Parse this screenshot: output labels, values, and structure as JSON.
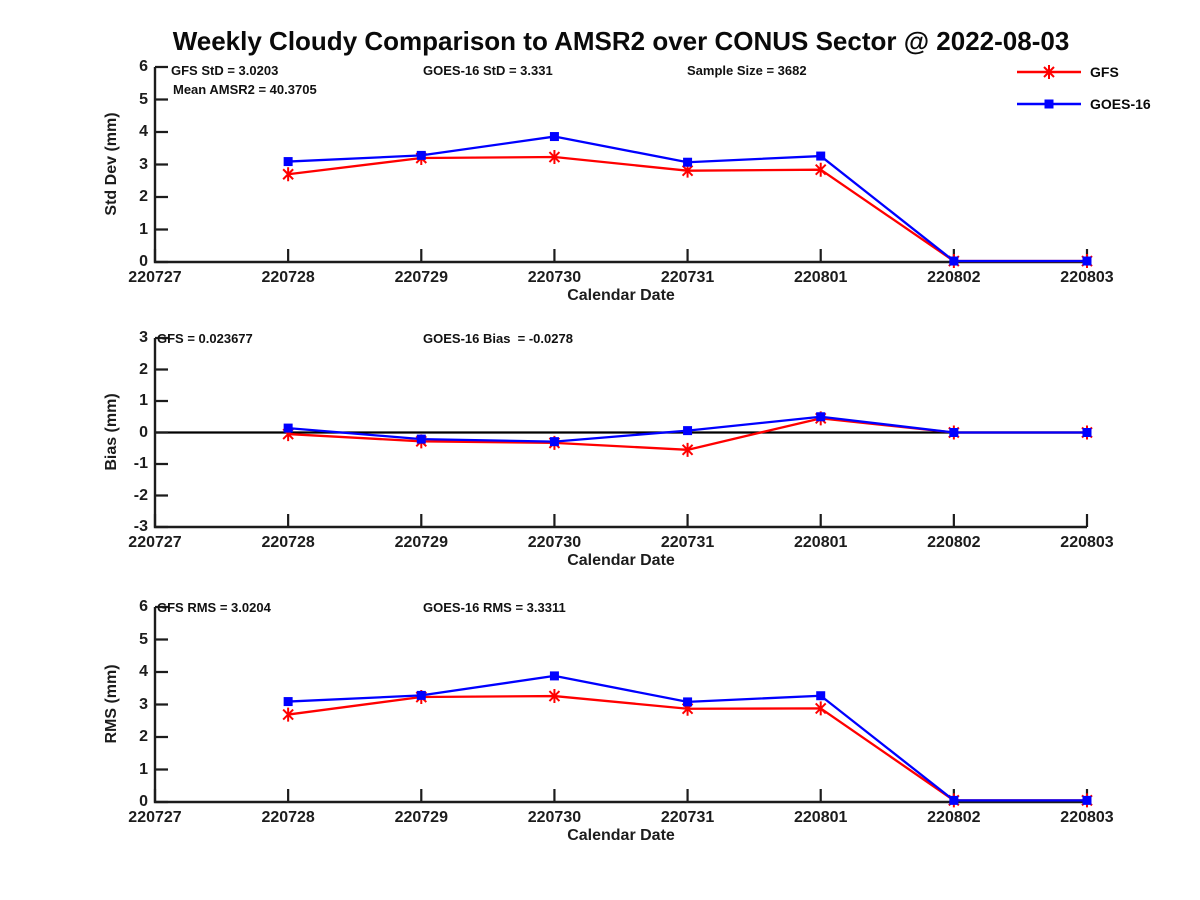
{
  "title": "Weekly Cloudy Comparison to AMSR2 over CONUS Sector @ 2022-08-03",
  "colors": {
    "gfs_red": "#ff0000",
    "goes_blue": "#0000ff",
    "axis": "#1c1c1c",
    "zero_line": "#000000",
    "background": "#ffffff"
  },
  "legend": {
    "entries": [
      {
        "label": "GFS",
        "color": "#ff0000",
        "marker": "asterisk"
      },
      {
        "label": "GOES-16",
        "color": "#0000ff",
        "marker": "square"
      }
    ]
  },
  "chart_data": [
    {
      "type": "line",
      "name": "std-dev-subplot",
      "xlabel": "Calendar Date",
      "ylabel": "Std Dev (mm)",
      "ylim": [
        0,
        6
      ],
      "yticks": [
        0,
        1,
        2,
        3,
        4,
        5,
        6
      ],
      "x_axis_categories": [
        "220727",
        "220728",
        "220729",
        "220730",
        "220731",
        "220801",
        "220802",
        "220803"
      ],
      "grid": false,
      "zero_line": false,
      "annotations": [
        "GFS StD = 3.0203",
        "GOES-16 StD = 3.331",
        "Sample Size = 3682",
        "Mean AMSR2 = 40.3705"
      ],
      "series": [
        {
          "name": "GFS",
          "color": "#ff0000",
          "marker": "asterisk",
          "x": [
            "220728",
            "220729",
            "220730",
            "220731",
            "220801",
            "220802",
            "220803"
          ],
          "values": [
            2.7,
            3.2,
            3.23,
            2.81,
            2.84,
            0.03,
            0.03
          ]
        },
        {
          "name": "GOES-16",
          "color": "#0000ff",
          "marker": "square",
          "x": [
            "220728",
            "220729",
            "220730",
            "220731",
            "220801",
            "220802",
            "220803"
          ],
          "values": [
            3.09,
            3.28,
            3.86,
            3.07,
            3.26,
            0.03,
            0.03
          ]
        }
      ]
    },
    {
      "type": "line",
      "name": "bias-subplot",
      "xlabel": "Calendar Date",
      "ylabel": "Bias (mm)",
      "ylim": [
        -3,
        3
      ],
      "yticks": [
        3,
        2,
        1,
        0,
        -1,
        -2,
        -3
      ],
      "x_axis_categories": [
        "220727",
        "220728",
        "220729",
        "220730",
        "220731",
        "220801",
        "220802",
        "220803"
      ],
      "grid": false,
      "zero_line": true,
      "annotations": [
        "GFS = 0.023677",
        "GOES-16 Bias  = -0.0278"
      ],
      "series": [
        {
          "name": "GFS",
          "color": "#ff0000",
          "marker": "asterisk",
          "x": [
            "220728",
            "220729",
            "220730",
            "220731",
            "220801",
            "220802",
            "220803"
          ],
          "values": [
            -0.05,
            -0.28,
            -0.33,
            -0.55,
            0.45,
            0.0,
            0.0
          ]
        },
        {
          "name": "GOES-16",
          "color": "#0000ff",
          "marker": "square",
          "x": [
            "220728",
            "220729",
            "220730",
            "220731",
            "220801",
            "220802",
            "220803"
          ],
          "values": [
            0.14,
            -0.21,
            -0.29,
            0.06,
            0.5,
            0.0,
            0.0
          ]
        }
      ]
    },
    {
      "type": "line",
      "name": "rms-subplot",
      "xlabel": "Calendar Date",
      "ylabel": "RMS (mm)",
      "ylim": [
        0,
        6
      ],
      "yticks": [
        0,
        1,
        2,
        3,
        4,
        5,
        6
      ],
      "x_axis_categories": [
        "220727",
        "220728",
        "220729",
        "220730",
        "220731",
        "220801",
        "220802",
        "220803"
      ],
      "grid": false,
      "zero_line": false,
      "annotations": [
        "GFS RMS = 3.0204",
        "GOES-16 RMS = 3.3311"
      ],
      "series": [
        {
          "name": "GFS",
          "color": "#ff0000",
          "marker": "asterisk",
          "x": [
            "220728",
            "220729",
            "220730",
            "220731",
            "220801",
            "220802",
            "220803"
          ],
          "values": [
            2.69,
            3.23,
            3.26,
            2.87,
            2.88,
            0.05,
            0.05
          ]
        },
        {
          "name": "GOES-16",
          "color": "#0000ff",
          "marker": "square",
          "x": [
            "220728",
            "220729",
            "220730",
            "220731",
            "220801",
            "220802",
            "220803"
          ],
          "values": [
            3.09,
            3.28,
            3.88,
            3.08,
            3.27,
            0.05,
            0.05
          ]
        }
      ]
    }
  ]
}
